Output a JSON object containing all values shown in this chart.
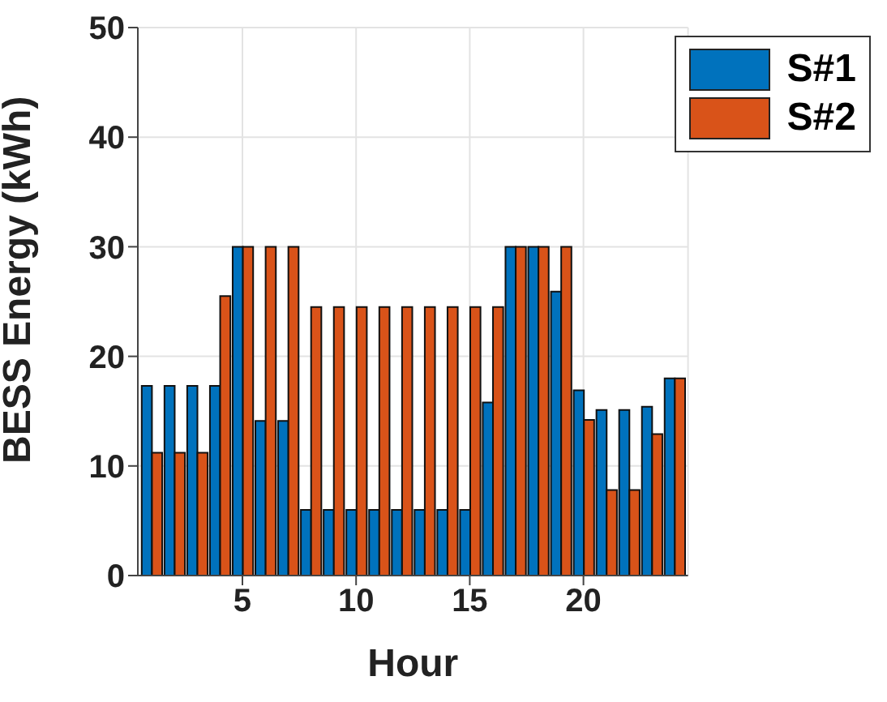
{
  "chart_data": {
    "type": "bar",
    "xlabel": "Hour",
    "ylabel": "BESS Energy (kWh)",
    "x": [
      1,
      2,
      3,
      4,
      5,
      6,
      7,
      8,
      9,
      10,
      11,
      12,
      13,
      14,
      15,
      16,
      17,
      18,
      19,
      20,
      21,
      22,
      23,
      24
    ],
    "series": [
      {
        "name": "S#1",
        "color": "#0072bd",
        "values": [
          17.3,
          17.3,
          17.3,
          17.3,
          30,
          14.1,
          14.1,
          6,
          6,
          6,
          6,
          6,
          6,
          6,
          6,
          15.8,
          30,
          30,
          25.9,
          16.9,
          15.1,
          15.1,
          15.4,
          18
        ]
      },
      {
        "name": "S#2",
        "color": "#d95319",
        "values": [
          11.2,
          11.2,
          11.2,
          25.5,
          30,
          30,
          30,
          24.5,
          24.5,
          24.5,
          24.5,
          24.5,
          24.5,
          24.5,
          24.5,
          24.5,
          30,
          30,
          30,
          14.2,
          7.8,
          7.8,
          12.9,
          18
        ]
      }
    ],
    "xlim": [
      0.4,
      24.6
    ],
    "xticks": [
      5,
      10,
      15,
      20
    ],
    "ylim": [
      0,
      50
    ],
    "yticks": [
      0,
      10,
      20,
      30,
      40,
      50
    ],
    "grid": true,
    "legend": "top right"
  }
}
